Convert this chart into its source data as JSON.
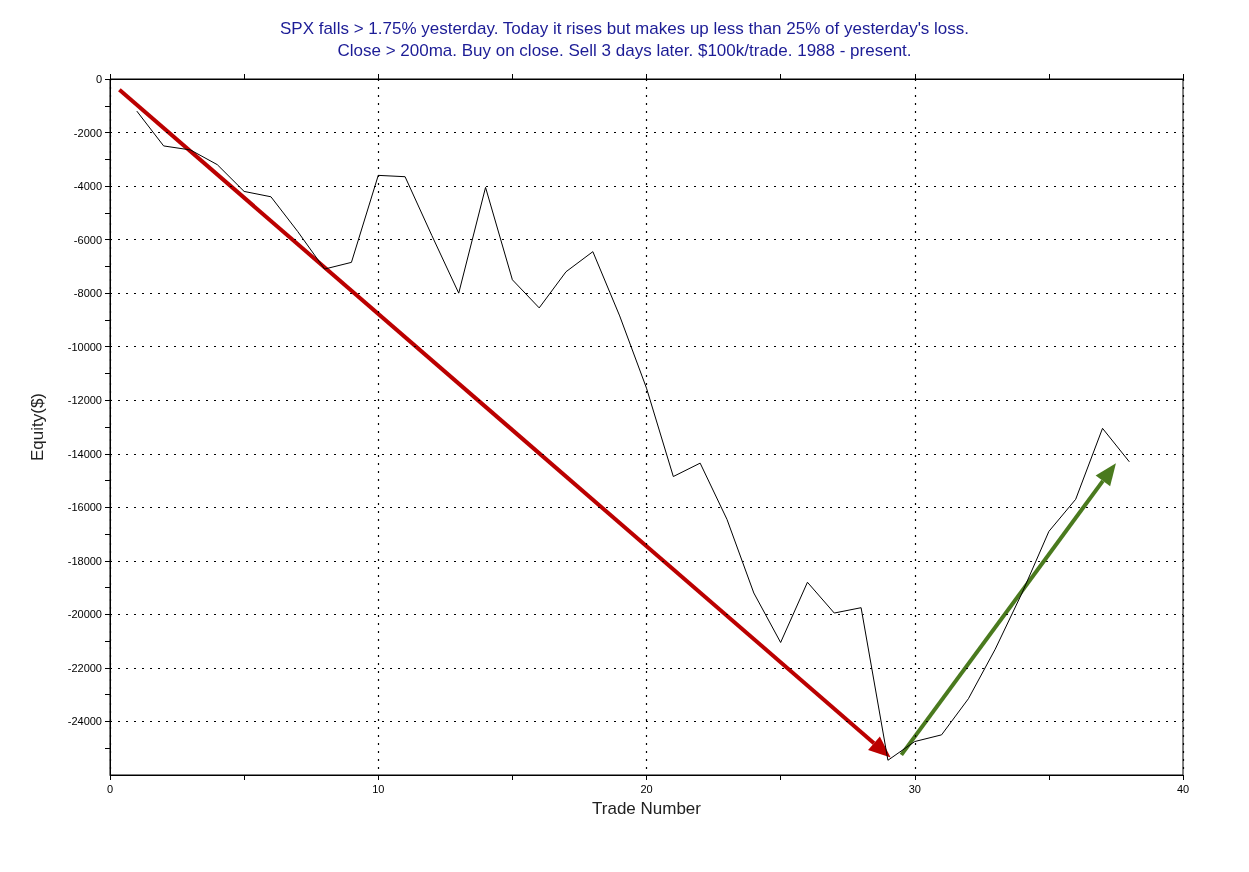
{
  "chart_data": {
    "type": "line",
    "title": "SPX falls > 1.75% yesterday. Today it rises but makes up less than 25% of yesterday's loss.\nClose > 200ma. Buy on close. Sell 3 days later. $100k/trade. 1988 - present.",
    "xlabel": "Trade Number",
    "ylabel": "Equity($)",
    "x": [
      1,
      2,
      3,
      4,
      5,
      6,
      7,
      8,
      9,
      10,
      11,
      12,
      13,
      14,
      15,
      16,
      17,
      18,
      19,
      20,
      21,
      22,
      23,
      24,
      25,
      26,
      27,
      28,
      29,
      30,
      31,
      32,
      33,
      34,
      35,
      36,
      37,
      38
    ],
    "series": [
      {
        "color": "#000000",
        "values": [
          -1200,
          -2500,
          -2650,
          -3200,
          -4200,
          -4400,
          -5700,
          -7100,
          -6850,
          -3600,
          -3650,
          -5850,
          -8000,
          -4050,
          -7500,
          -8550,
          -7200,
          -6450,
          -8850,
          -11550,
          -14850,
          -14350,
          -16450,
          -19200,
          -21050,
          -18800,
          -19950,
          -19750,
          -25450,
          -24750,
          -24500,
          -23150,
          -21300,
          -19200,
          -16900,
          -15700,
          -13050,
          -14300
        ]
      }
    ],
    "xlim": [
      0,
      40
    ],
    "xticks": [
      0,
      {
        "value": 5,
        "label": null
      },
      10,
      {
        "value": 15,
        "label": null
      },
      20,
      {
        "value": 25,
        "label": null
      },
      30,
      {
        "value": 35,
        "label": null
      },
      40
    ],
    "ylim": [
      -26000,
      0
    ],
    "yticks": [
      0,
      {
        "value": -1000,
        "label": null
      },
      -2000,
      {
        "value": -3000,
        "label": null
      },
      -4000,
      {
        "value": -5000,
        "label": null
      },
      -6000,
      {
        "value": -7000,
        "label": null
      },
      -8000,
      {
        "value": -9000,
        "label": null
      },
      -10000,
      {
        "value": -11000,
        "label": null
      },
      -12000,
      {
        "value": -13000,
        "label": null
      },
      -14000,
      {
        "value": -15000,
        "label": null
      },
      -16000,
      {
        "value": -17000,
        "label": null
      },
      -18000,
      {
        "value": -19000,
        "label": null
      },
      -20000,
      {
        "value": -21000,
        "label": null
      },
      -22000,
      {
        "value": -23000,
        "label": null
      },
      -24000,
      {
        "value": -25000,
        "label": null
      }
    ],
    "grid": true,
    "marker": "none",
    "line_style": "solid"
  }
}
